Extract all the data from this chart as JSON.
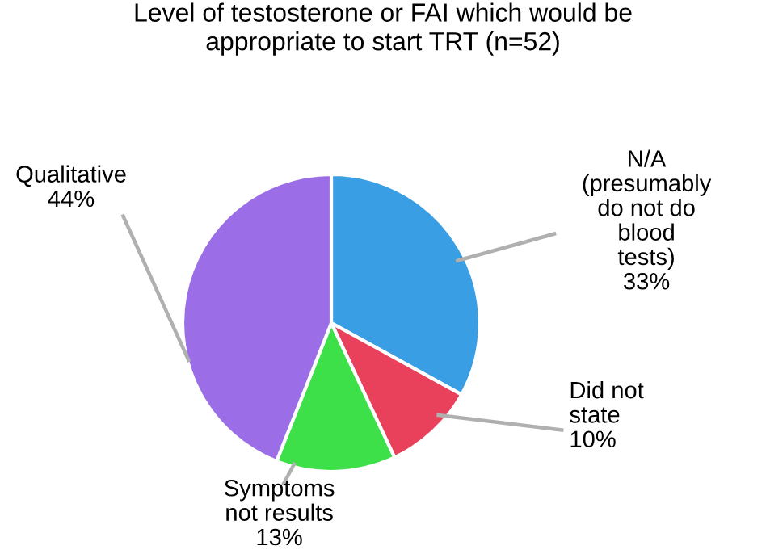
{
  "chart_data": {
    "type": "pie",
    "title": "Level of testosterone or FAI which would be\nappropriate to start TRT (n=52)",
    "categories": [
      "N/A\n(presumably\ndo not do\nblood\ntests)",
      "Did not\nstate",
      "Symptoms\nnot results",
      "Qualitative"
    ],
    "values": [
      33,
      10,
      13,
      44
    ],
    "colors": [
      "#3a9ee4",
      "#e9405c",
      "#3ee04a",
      "#9b6ee8"
    ],
    "value_labels": [
      "33%",
      "10%",
      "13%",
      "44%"
    ],
    "data_labels": true,
    "legend": false
  }
}
